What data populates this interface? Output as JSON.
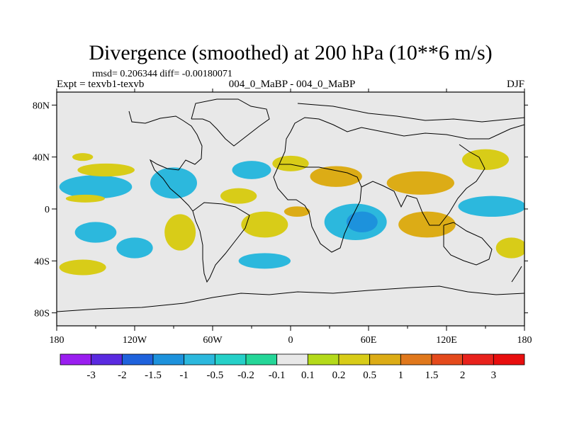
{
  "chart_data": {
    "type": "heatmap",
    "title": "Divergence (smoothed) at 200 hPa (10**6 m/s)",
    "stats": "rmsd= 0.206344 diff= -0.00180071",
    "experiment": "Expt = texvb1-texvb",
    "case": "004_0_MaBP - 004_0_MaBP",
    "season": "DJF",
    "xlabel": "",
    "ylabel": "",
    "xlim": [
      -180,
      180
    ],
    "ylim": [
      -90,
      90
    ],
    "x_ticks": [
      {
        "value": -180,
        "label": "180"
      },
      {
        "value": -120,
        "label": "120W"
      },
      {
        "value": -60,
        "label": "60W"
      },
      {
        "value": 0,
        "label": "0"
      },
      {
        "value": 60,
        "label": "60E"
      },
      {
        "value": 120,
        "label": "120E"
      },
      {
        "value": 180,
        "label": "180"
      }
    ],
    "y_ticks": [
      {
        "value": 80,
        "label": "80N"
      },
      {
        "value": 40,
        "label": "40N"
      },
      {
        "value": 0,
        "label": "0"
      },
      {
        "value": -40,
        "label": "40S"
      },
      {
        "value": -80,
        "label": "80S"
      }
    ],
    "colorbar": {
      "levels": [
        "-3",
        "-2",
        "-1.5",
        "-1",
        "-0.5",
        "-0.2",
        "-0.1",
        "0.1",
        "0.2",
        "0.5",
        "1",
        "1.5",
        "2",
        "3"
      ],
      "colors": [
        "#9a1ef0",
        "#5a2ae0",
        "#1f62dc",
        "#1d92dc",
        "#2cb8dd",
        "#26d0c8",
        "#25d698",
        "#e8e8e8",
        "#b4da1a",
        "#d8cc18",
        "#dcac16",
        "#e0781c",
        "#e44a1c",
        "#e8221c",
        "#e80e0e"
      ]
    },
    "features": [
      {
        "lon": -150,
        "lat": 17,
        "rx": 28,
        "ry": 9,
        "level": "-0.5"
      },
      {
        "lon": -158,
        "lat": 8,
        "rx": 15,
        "ry": 3,
        "level": "0.2"
      },
      {
        "lon": -160,
        "lat": 40,
        "rx": 8,
        "ry": 3,
        "level": "0.2"
      },
      {
        "lon": -142,
        "lat": 30,
        "rx": 22,
        "ry": 5,
        "level": "0.2"
      },
      {
        "lon": -90,
        "lat": 20,
        "rx": 18,
        "ry": 12,
        "level": "-0.5"
      },
      {
        "lon": -150,
        "lat": -18,
        "rx": 16,
        "ry": 8,
        "level": "-0.5"
      },
      {
        "lon": -160,
        "lat": -45,
        "rx": 18,
        "ry": 6,
        "level": "0.2"
      },
      {
        "lon": -120,
        "lat": -30,
        "rx": 14,
        "ry": 8,
        "level": "-0.5"
      },
      {
        "lon": -85,
        "lat": -18,
        "rx": 12,
        "ry": 14,
        "level": "0.2"
      },
      {
        "lon": -40,
        "lat": 10,
        "rx": 14,
        "ry": 6,
        "level": "0.2"
      },
      {
        "lon": -30,
        "lat": 30,
        "rx": 15,
        "ry": 7,
        "level": "-0.5"
      },
      {
        "lon": -20,
        "lat": -12,
        "rx": 18,
        "ry": 10,
        "level": "0.2"
      },
      {
        "lon": -20,
        "lat": -40,
        "rx": 20,
        "ry": 6,
        "level": "-0.5"
      },
      {
        "lon": 0,
        "lat": 35,
        "rx": 14,
        "ry": 6,
        "level": "0.2"
      },
      {
        "lon": 5,
        "lat": -2,
        "rx": 10,
        "ry": 4,
        "level": "0.5"
      },
      {
        "lon": 35,
        "lat": 25,
        "rx": 20,
        "ry": 8,
        "level": "0.5"
      },
      {
        "lon": 50,
        "lat": -10,
        "rx": 24,
        "ry": 14,
        "level": "-0.5"
      },
      {
        "lon": 55,
        "lat": -10,
        "rx": 12,
        "ry": 8,
        "level": "-1"
      },
      {
        "lon": 105,
        "lat": -12,
        "rx": 22,
        "ry": 10,
        "level": "0.5"
      },
      {
        "lon": 100,
        "lat": 20,
        "rx": 26,
        "ry": 9,
        "level": "0.5"
      },
      {
        "lon": 155,
        "lat": 2,
        "rx": 26,
        "ry": 8,
        "level": "-0.5"
      },
      {
        "lon": 150,
        "lat": 38,
        "rx": 18,
        "ry": 8,
        "level": "0.2"
      },
      {
        "lon": 170,
        "lat": -30,
        "rx": 12,
        "ry": 8,
        "level": "0.2"
      }
    ]
  }
}
